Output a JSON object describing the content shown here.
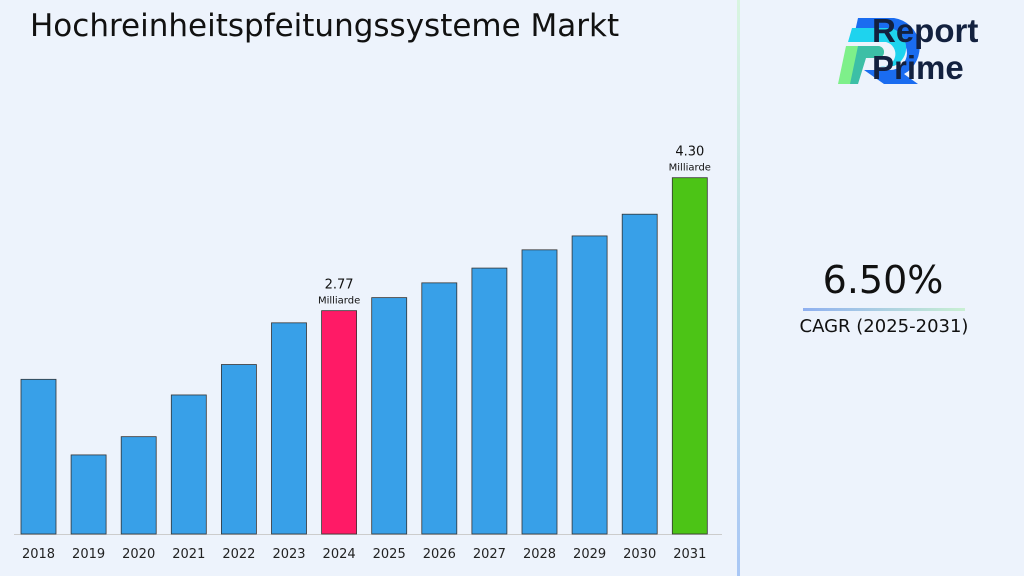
{
  "chart_data": {
    "type": "bar",
    "title": "Hochreinheitspfeitungssysteme Markt",
    "categories": [
      "2018",
      "2019",
      "2020",
      "2021",
      "2022",
      "2023",
      "2024",
      "2025",
      "2026",
      "2027",
      "2028",
      "2029",
      "2030",
      "2031"
    ],
    "values": [
      1.98,
      1.11,
      1.32,
      1.8,
      2.15,
      2.63,
      2.77,
      2.92,
      3.09,
      3.26,
      3.47,
      3.63,
      3.88,
      4.3
    ],
    "colors": {
      "default": "#38a0e8",
      "highlight_2024": "#ff1a66",
      "highlight_2031": "#4cc416"
    },
    "data_labels": [
      {
        "category": "2024",
        "value": "2.77",
        "unit": "Milliarde"
      },
      {
        "category": "2031",
        "value": "4.30",
        "unit": "Milliarde"
      }
    ],
    "ylim": [
      0.2,
      4.5
    ],
    "grid": false,
    "xlabel": "",
    "ylabel": ""
  },
  "brand": {
    "line1": "Report",
    "line2": "Prime"
  },
  "cagr": {
    "value": "6.50%",
    "label": "CAGR (2025-2031)"
  }
}
